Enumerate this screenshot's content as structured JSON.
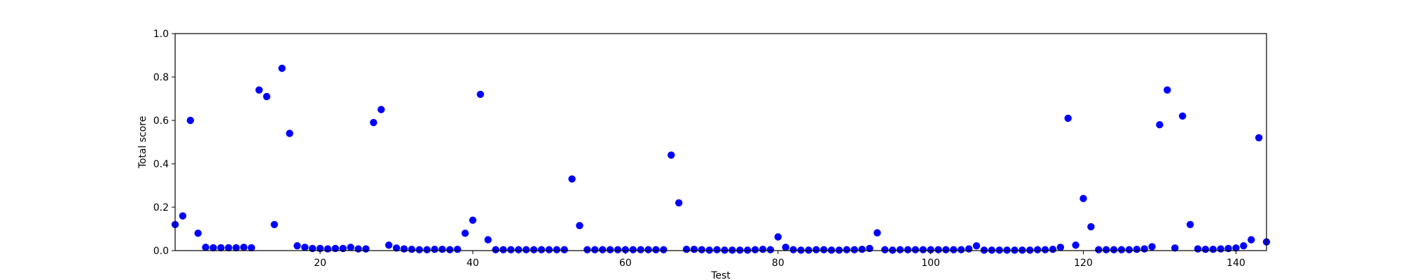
{
  "chart_data": {
    "type": "scatter",
    "title": "",
    "xlabel": "Test",
    "ylabel": "Total score",
    "xlim": [
      1,
      144
    ],
    "ylim": [
      0,
      1
    ],
    "xticks": [
      20,
      40,
      60,
      80,
      100,
      120,
      140
    ],
    "yticks": [
      0.0,
      0.2,
      0.4,
      0.6,
      0.8,
      1.0
    ],
    "grid": false,
    "legend": "none",
    "series": [
      {
        "color": "#0000ff",
        "x": [
          1,
          2,
          3,
          4,
          5,
          6,
          7,
          8,
          9,
          10,
          11,
          12,
          13,
          14,
          15,
          16,
          17,
          18,
          19,
          20,
          21,
          22,
          23,
          24,
          25,
          26,
          27,
          28,
          29,
          30,
          31,
          32,
          33,
          34,
          35,
          36,
          37,
          38,
          39,
          40,
          41,
          42,
          43,
          44,
          45,
          46,
          47,
          48,
          49,
          50,
          51,
          52,
          53,
          54,
          55,
          56,
          57,
          58,
          59,
          60,
          61,
          62,
          63,
          64,
          65,
          66,
          67,
          68,
          69,
          70,
          71,
          72,
          73,
          74,
          75,
          76,
          77,
          78,
          79,
          80,
          81,
          82,
          83,
          84,
          85,
          86,
          87,
          88,
          89,
          90,
          91,
          92,
          93,
          94,
          95,
          96,
          97,
          98,
          99,
          100,
          101,
          102,
          103,
          104,
          105,
          106,
          107,
          108,
          109,
          110,
          111,
          112,
          113,
          114,
          115,
          116,
          117,
          118,
          119,
          120,
          121,
          122,
          123,
          124,
          125,
          126,
          127,
          128,
          129,
          130,
          131,
          132,
          133,
          134,
          135,
          136,
          137,
          138,
          139,
          140,
          141,
          142,
          143,
          144
        ],
        "y": [
          0.12,
          0.16,
          0.6,
          0.08,
          0.015,
          0.013,
          0.013,
          0.013,
          0.013,
          0.015,
          0.013,
          0.74,
          0.71,
          0.12,
          0.84,
          0.54,
          0.022,
          0.015,
          0.01,
          0.01,
          0.008,
          0.01,
          0.01,
          0.015,
          0.008,
          0.008,
          0.59,
          0.65,
          0.025,
          0.012,
          0.008,
          0.006,
          0.004,
          0.004,
          0.006,
          0.006,
          0.004,
          0.006,
          0.08,
          0.14,
          0.72,
          0.05,
          0.004,
          0.004,
          0.004,
          0.004,
          0.004,
          0.004,
          0.004,
          0.004,
          0.004,
          0.004,
          0.33,
          0.115,
          0.004,
          0.004,
          0.004,
          0.004,
          0.004,
          0.004,
          0.004,
          0.004,
          0.004,
          0.004,
          0.004,
          0.44,
          0.22,
          0.006,
          0.006,
          0.004,
          0.002,
          0.004,
          0.002,
          0.002,
          0.002,
          0.002,
          0.004,
          0.006,
          0.004,
          0.063,
          0.015,
          0.004,
          0.002,
          0.002,
          0.004,
          0.004,
          0.002,
          0.002,
          0.004,
          0.004,
          0.006,
          0.01,
          0.082,
          0.004,
          0.002,
          0.004,
          0.004,
          0.004,
          0.004,
          0.004,
          0.004,
          0.004,
          0.004,
          0.004,
          0.008,
          0.022,
          0.002,
          0.002,
          0.002,
          0.002,
          0.002,
          0.002,
          0.002,
          0.004,
          0.004,
          0.006,
          0.015,
          0.61,
          0.025,
          0.24,
          0.11,
          0.004,
          0.004,
          0.004,
          0.004,
          0.004,
          0.006,
          0.008,
          0.018,
          0.58,
          0.74,
          0.012,
          0.62,
          0.12,
          0.008,
          0.006,
          0.006,
          0.008,
          0.01,
          0.012,
          0.022,
          0.05,
          0.52,
          0.04
        ]
      }
    ]
  }
}
